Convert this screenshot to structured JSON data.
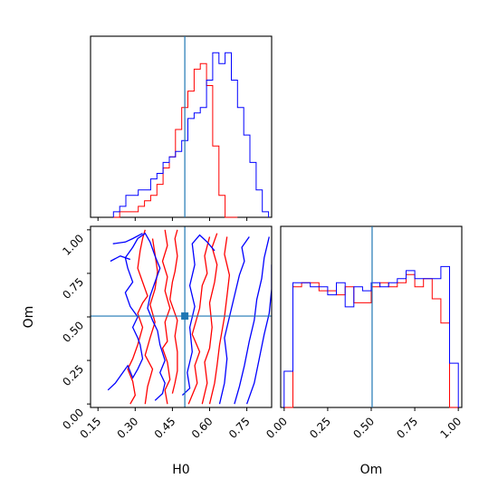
{
  "chart_data": {
    "type": "corner",
    "colors": {
      "series_a": "#ff0000",
      "series_b": "#0000ff",
      "truth": "#1f77b4"
    },
    "parameters": [
      {
        "name": "H0",
        "ticks": [
          "0.15",
          "0.30",
          "0.45",
          "0.60",
          "0.75"
        ],
        "range": [
          0.12,
          0.85
        ],
        "truth": 0.5
      },
      {
        "name": "Om",
        "ticks": [
          "0.00",
          "0.25",
          "0.50",
          "0.75",
          "1.00"
        ],
        "range": [
          -0.02,
          1.02
        ],
        "truth": 0.505
      }
    ],
    "hist_h0": {
      "bin_width": 0.025,
      "series": [
        {
          "color": "red",
          "x": [
            0.225,
            0.25,
            0.275,
            0.3,
            0.325,
            0.35,
            0.375,
            0.4,
            0.425,
            0.45,
            0.475,
            0.5,
            0.525,
            0.55,
            0.575,
            0.6,
            0.625,
            0.65,
            0.675,
            0.7
          ],
          "values": [
            0,
            1,
            1,
            1,
            2,
            3,
            4,
            6,
            9,
            11,
            16,
            20,
            23,
            27,
            28,
            24,
            13,
            4,
            0,
            0
          ]
        },
        {
          "color": "blue",
          "x": [
            0.225,
            0.25,
            0.275,
            0.3,
            0.325,
            0.35,
            0.375,
            0.4,
            0.425,
            0.45,
            0.475,
            0.5,
            0.525,
            0.55,
            0.575,
            0.6,
            0.625,
            0.65,
            0.675,
            0.7,
            0.725,
            0.75,
            0.775,
            0.8,
            0.825
          ],
          "values": [
            1,
            2,
            4,
            4,
            5,
            5,
            7,
            8,
            10,
            11,
            12,
            14,
            18,
            19,
            20,
            25,
            30,
            28,
            30,
            25,
            20,
            15,
            10,
            5,
            1
          ]
        }
      ]
    },
    "hist_om": {
      "bin_width": 0.05,
      "series": [
        {
          "color": "red",
          "x": [
            0.025,
            0.075,
            0.125,
            0.175,
            0.225,
            0.275,
            0.325,
            0.375,
            0.425,
            0.475,
            0.525,
            0.575,
            0.625,
            0.675,
            0.725,
            0.775,
            0.825,
            0.875,
            0.925,
            0.975
          ],
          "values": [
            0,
            30,
            31,
            31,
            29,
            29,
            28,
            30,
            26,
            26,
            30,
            31,
            30,
            31,
            33,
            30,
            32,
            27,
            21,
            0
          ]
        },
        {
          "color": "blue",
          "x": [
            0.025,
            0.075,
            0.125,
            0.175,
            0.225,
            0.275,
            0.325,
            0.375,
            0.425,
            0.475,
            0.525,
            0.575,
            0.625,
            0.675,
            0.725,
            0.775,
            0.825,
            0.875,
            0.925,
            0.975
          ],
          "values": [
            9,
            31,
            31,
            30,
            30,
            28,
            31,
            25,
            30,
            29,
            31,
            30,
            31,
            32,
            34,
            32,
            32,
            32,
            35,
            11
          ]
        }
      ]
    },
    "contours": [
      {
        "color": "red",
        "paths": [
          [
            [
              0.45,
              0.06
            ],
            [
              0.46,
              0.12
            ],
            [
              0.47,
              0.19
            ],
            [
              0.47,
              0.3
            ],
            [
              0.46,
              0.39
            ],
            [
              0.47,
              0.48
            ],
            [
              0.44,
              0.6
            ],
            [
              0.45,
              0.7
            ],
            [
              0.46,
              0.76
            ],
            [
              0.47,
              0.85
            ],
            [
              0.46,
              0.95
            ],
            [
              0.47,
              1.0
            ]
          ],
          [
            [
              0.43,
              0.0
            ],
            [
              0.42,
              0.08
            ],
            [
              0.44,
              0.14
            ],
            [
              0.43,
              0.24
            ],
            [
              0.41,
              0.32
            ],
            [
              0.43,
              0.36
            ],
            [
              0.42,
              0.47
            ],
            [
              0.44,
              0.55
            ],
            [
              0.42,
              0.65
            ],
            [
              0.43,
              0.73
            ],
            [
              0.41,
              0.82
            ],
            [
              0.43,
              0.91
            ],
            [
              0.42,
              1.0
            ]
          ],
          [
            [
              0.28,
              0.0
            ],
            [
              0.3,
              0.05
            ],
            [
              0.29,
              0.13
            ],
            [
              0.27,
              0.2
            ],
            [
              0.29,
              0.26
            ],
            [
              0.31,
              0.34
            ],
            [
              0.33,
              0.44
            ],
            [
              0.31,
              0.52
            ],
            [
              0.33,
              0.58
            ],
            [
              0.35,
              0.62
            ],
            [
              0.33,
              0.7
            ],
            [
              0.31,
              0.78
            ],
            [
              0.32,
              0.88
            ],
            [
              0.33,
              0.95
            ],
            [
              0.34,
              1.0
            ]
          ],
          [
            [
              0.34,
              0.0
            ],
            [
              0.35,
              0.1
            ],
            [
              0.37,
              0.2
            ],
            [
              0.34,
              0.28
            ],
            [
              0.36,
              0.38
            ],
            [
              0.38,
              0.47
            ],
            [
              0.36,
              0.57
            ],
            [
              0.38,
              0.66
            ],
            [
              0.39,
              0.76
            ],
            [
              0.38,
              0.86
            ],
            [
              0.37,
              0.95
            ]
          ],
          [
            [
              0.515,
              0.0
            ],
            [
              0.55,
              0.12
            ],
            [
              0.54,
              0.22
            ],
            [
              0.56,
              0.3
            ],
            [
              0.53,
              0.4
            ],
            [
              0.56,
              0.55
            ],
            [
              0.57,
              0.68
            ],
            [
              0.59,
              0.75
            ],
            [
              0.58,
              0.85
            ],
            [
              0.6,
              0.96
            ]
          ],
          [
            [
              0.57,
              0.0
            ],
            [
              0.59,
              0.12
            ],
            [
              0.58,
              0.24
            ],
            [
              0.6,
              0.32
            ],
            [
              0.61,
              0.44
            ],
            [
              0.6,
              0.58
            ],
            [
              0.62,
              0.7
            ],
            [
              0.63,
              0.8
            ],
            [
              0.61,
              0.9
            ],
            [
              0.63,
              0.98
            ]
          ],
          [
            [
              0.6,
              0.0
            ],
            [
              0.62,
              0.12
            ],
            [
              0.63,
              0.22
            ],
            [
              0.64,
              0.34
            ],
            [
              0.66,
              0.5
            ],
            [
              0.67,
              0.62
            ],
            [
              0.68,
              0.74
            ],
            [
              0.66,
              0.86
            ],
            [
              0.67,
              0.96
            ]
          ]
        ]
      },
      {
        "color": "blue",
        "paths": [
          [
            [
              0.19,
              0.08
            ],
            [
              0.22,
              0.12
            ],
            [
              0.25,
              0.18
            ],
            [
              0.27,
              0.22
            ],
            [
              0.29,
              0.15
            ],
            [
              0.31,
              0.2
            ],
            [
              0.33,
              0.26
            ],
            [
              0.32,
              0.34
            ],
            [
              0.31,
              0.38
            ],
            [
              0.29,
              0.44
            ],
            [
              0.31,
              0.5
            ],
            [
              0.28,
              0.56
            ],
            [
              0.26,
              0.64
            ],
            [
              0.29,
              0.7
            ],
            [
              0.27,
              0.78
            ],
            [
              0.26,
              0.84
            ],
            [
              0.29,
              0.9
            ],
            [
              0.31,
              0.95
            ],
            [
              0.34,
              0.98
            ],
            [
              0.36,
              0.93
            ],
            [
              0.38,
              0.85
            ],
            [
              0.4,
              0.78
            ],
            [
              0.38,
              0.7
            ],
            [
              0.36,
              0.62
            ],
            [
              0.35,
              0.55
            ],
            [
              0.37,
              0.48
            ],
            [
              0.39,
              0.42
            ],
            [
              0.4,
              0.34
            ],
            [
              0.42,
              0.25
            ],
            [
              0.4,
              0.18
            ],
            [
              0.42,
              0.12
            ],
            [
              0.41,
              0.06
            ],
            [
              0.38,
              0.02
            ]
          ],
          [
            [
              0.21,
              0.92
            ],
            [
              0.26,
              0.93
            ],
            [
              0.29,
              0.95
            ],
            [
              0.33,
              0.98
            ]
          ],
          [
            [
              0.2,
              0.82
            ],
            [
              0.24,
              0.85
            ],
            [
              0.28,
              0.83
            ]
          ],
          [
            [
              0.49,
              0.05
            ],
            [
              0.52,
              0.09
            ],
            [
              0.51,
              0.18
            ],
            [
              0.53,
              0.3
            ],
            [
              0.52,
              0.44
            ],
            [
              0.54,
              0.56
            ],
            [
              0.52,
              0.68
            ],
            [
              0.54,
              0.8
            ],
            [
              0.53,
              0.92
            ],
            [
              0.56,
              0.97
            ],
            [
              0.59,
              0.93
            ],
            [
              0.62,
              0.88
            ]
          ],
          [
            [
              0.64,
              0.0
            ],
            [
              0.66,
              0.12
            ],
            [
              0.67,
              0.26
            ],
            [
              0.66,
              0.38
            ],
            [
              0.68,
              0.5
            ],
            [
              0.7,
              0.62
            ],
            [
              0.72,
              0.74
            ],
            [
              0.74,
              0.82
            ],
            [
              0.73,
              0.9
            ],
            [
              0.76,
              0.96
            ]
          ],
          [
            [
              0.7,
              0.0
            ],
            [
              0.72,
              0.1
            ],
            [
              0.74,
              0.22
            ],
            [
              0.76,
              0.36
            ],
            [
              0.78,
              0.48
            ],
            [
              0.79,
              0.6
            ],
            [
              0.81,
              0.72
            ],
            [
              0.82,
              0.84
            ],
            [
              0.84,
              0.96
            ]
          ],
          [
            [
              0.75,
              0.0
            ],
            [
              0.78,
              0.12
            ],
            [
              0.8,
              0.26
            ],
            [
              0.82,
              0.4
            ],
            [
              0.84,
              0.52
            ],
            [
              0.85,
              0.66
            ],
            [
              0.85,
              0.8
            ]
          ]
        ]
      }
    ]
  }
}
